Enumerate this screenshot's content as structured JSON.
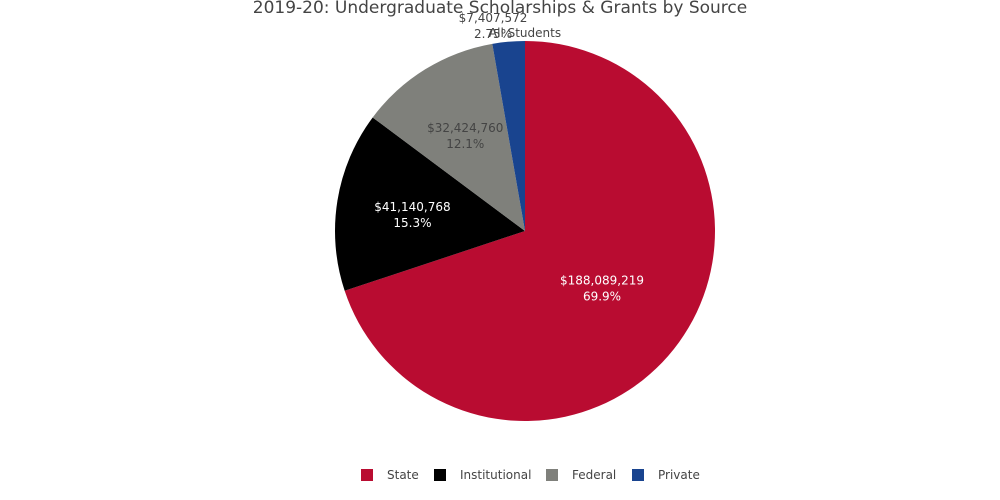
{
  "chart_data": {
    "type": "pie",
    "title": "2019-20: Undergraduate Scholarships & Grants by Source",
    "subtitle": "All Students",
    "slices": [
      {
        "name": "State",
        "value": 188089219,
        "value_label": "$188,089,219",
        "percent_label": "69.9%",
        "color": "#b90c31",
        "text_color": "#ffffff",
        "label_position": "inside"
      },
      {
        "name": "Institutional",
        "value": 41140768,
        "value_label": "$41,140,768",
        "percent_label": "15.3%",
        "color": "#000000",
        "text_color": "#ffffff",
        "label_position": "inside"
      },
      {
        "name": "Federal",
        "value": 32424760,
        "value_label": "$32,424,760",
        "percent_label": "12.1%",
        "color": "#7f807b",
        "text_color": "#444444",
        "label_position": "inside"
      },
      {
        "name": "Private",
        "value": 7407572,
        "value_label": "$7,407,572",
        "percent_label": "2.75%",
        "color": "#19448f",
        "text_color": "#444444",
        "label_position": "outside"
      }
    ],
    "legend_position": "bottom",
    "direction": "clockwise",
    "start": "top"
  }
}
